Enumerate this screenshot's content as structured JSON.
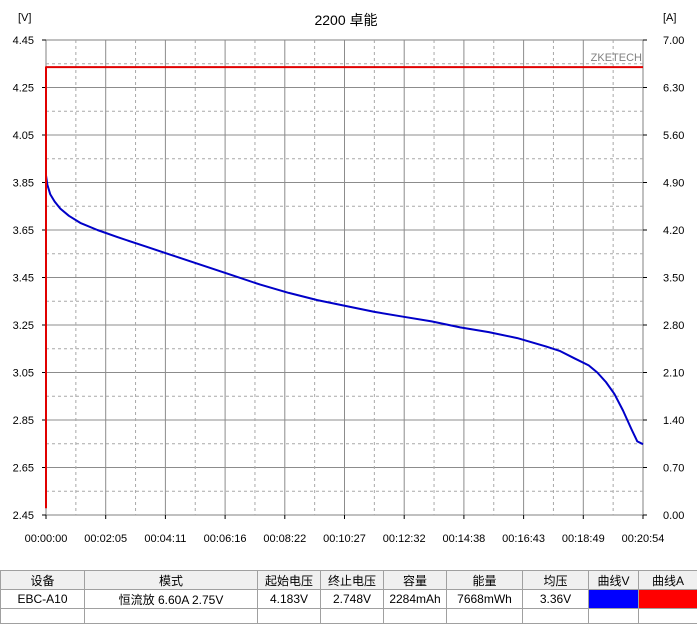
{
  "chart_data": {
    "type": "line",
    "title": "2200 卓能",
    "watermark": "ZKETECH",
    "y_left_unit": "[V]",
    "y_right_unit": "[A]",
    "y_left_ticks": [
      "4.45",
      "4.25",
      "4.05",
      "3.85",
      "3.65",
      "3.45",
      "3.25",
      "3.05",
      "2.85",
      "2.65",
      "2.45"
    ],
    "y_right_ticks": [
      "7.00",
      "6.30",
      "5.60",
      "4.90",
      "4.20",
      "3.50",
      "2.80",
      "2.10",
      "1.40",
      "0.70",
      "0.00"
    ],
    "x_ticks": [
      "00:00:00",
      "00:02:05",
      "00:04:11",
      "00:06:16",
      "00:08:22",
      "00:10:27",
      "00:12:32",
      "00:14:38",
      "00:16:43",
      "00:18:49",
      "00:20:54"
    ],
    "y_left_range": [
      2.45,
      4.45
    ],
    "y_right_range": [
      0,
      7.0
    ],
    "x_range_min": [
      0,
      20.9
    ],
    "grid": true,
    "series": [
      {
        "axis": "left",
        "color": "#0000c8",
        "x": [
          0,
          0.05,
          0.15,
          0.3,
          0.5,
          0.8,
          1.2,
          1.8,
          2.5,
          3.5,
          4.5,
          5.5,
          6.5,
          7.5,
          8.5,
          9.5,
          10.5,
          11.5,
          12.5,
          13.5,
          14.5,
          15.5,
          16.5,
          17.5,
          18.0,
          18.5,
          19.0,
          19.3,
          19.6,
          19.9,
          20.2,
          20.5,
          20.7,
          20.9
        ],
        "y": [
          3.88,
          3.84,
          3.8,
          3.77,
          3.74,
          3.71,
          3.68,
          3.65,
          3.62,
          3.58,
          3.54,
          3.5,
          3.46,
          3.42,
          3.385,
          3.355,
          3.33,
          3.305,
          3.285,
          3.265,
          3.24,
          3.22,
          3.195,
          3.16,
          3.14,
          3.11,
          3.08,
          3.05,
          3.01,
          2.96,
          2.89,
          2.81,
          2.76,
          2.748
        ]
      },
      {
        "axis": "right",
        "color": "#e00000",
        "x": [
          0,
          0,
          0,
          20.9
        ],
        "y": [
          0.1,
          0.1,
          6.6,
          6.6
        ]
      }
    ]
  },
  "table": {
    "headers": [
      "设备",
      "模式",
      "起始电压",
      "终止电压",
      "容量",
      "能量",
      "均压",
      "曲线V",
      "曲线A"
    ],
    "row": [
      "EBC-A10",
      "恒流放  6.60A  2.75V",
      "4.183V",
      "2.748V",
      "2284mAh",
      "7668mWh",
      "3.36V"
    ],
    "curve_v_color": "#0000ff",
    "curve_a_color": "#ff0000"
  }
}
